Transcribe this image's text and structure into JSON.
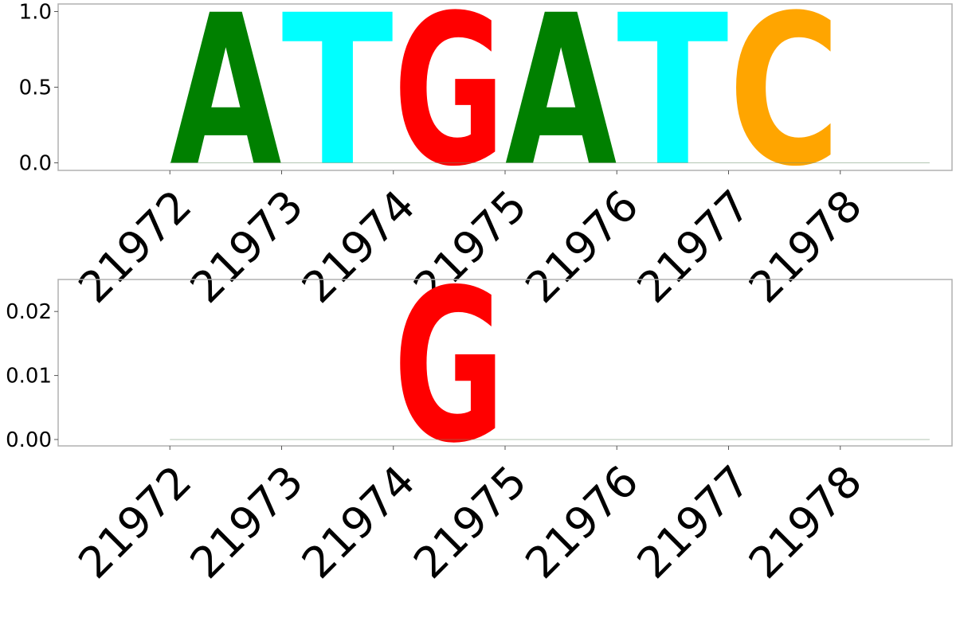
{
  "colors": {
    "A": "#008000",
    "C": "#ffa500",
    "G": "#ff0000",
    "T": "#00ffff",
    "frame": "#b0b0b0"
  },
  "chart_data": [
    {
      "type": "sequence-logo",
      "title": "",
      "xlabel": "",
      "ylabel": "",
      "x_ticks": [
        "21972",
        "21973",
        "21974",
        "21975",
        "21976",
        "21977",
        "21978"
      ],
      "y_ticks": [
        "0.0",
        "0.5",
        "1.0"
      ],
      "ylim": [
        -0.05,
        1.05
      ],
      "grid": false,
      "positions": [
        {
          "x": 21972,
          "letter": "A",
          "height": 1.0
        },
        {
          "x": 21973,
          "letter": "T",
          "height": 1.0
        },
        {
          "x": 21974,
          "letter": "G",
          "height": 1.0
        },
        {
          "x": 21975,
          "letter": "A",
          "height": 1.0
        },
        {
          "x": 21976,
          "letter": "T",
          "height": 1.0
        },
        {
          "x": 21977,
          "letter": "C",
          "height": 1.0
        },
        {
          "x": 21978,
          "letter": "",
          "height": 0.0
        }
      ]
    },
    {
      "type": "sequence-logo",
      "title": "",
      "xlabel": "",
      "ylabel": "",
      "x_ticks": [
        "21972",
        "21973",
        "21974",
        "21975",
        "21976",
        "21977",
        "21978"
      ],
      "y_ticks": [
        "0.00",
        "0.01",
        "0.02"
      ],
      "ylim": [
        -0.001,
        0.025
      ],
      "grid": false,
      "positions": [
        {
          "x": 21972,
          "letter": "",
          "height": 0.0
        },
        {
          "x": 21973,
          "letter": "",
          "height": 0.0
        },
        {
          "x": 21974,
          "letter": "G",
          "height": 0.024
        },
        {
          "x": 21975,
          "letter": "",
          "height": 0.0
        },
        {
          "x": 21976,
          "letter": "",
          "height": 0.0
        },
        {
          "x": 21977,
          "letter": "",
          "height": 0.0
        },
        {
          "x": 21978,
          "letter": "",
          "height": 0.0
        }
      ]
    }
  ]
}
